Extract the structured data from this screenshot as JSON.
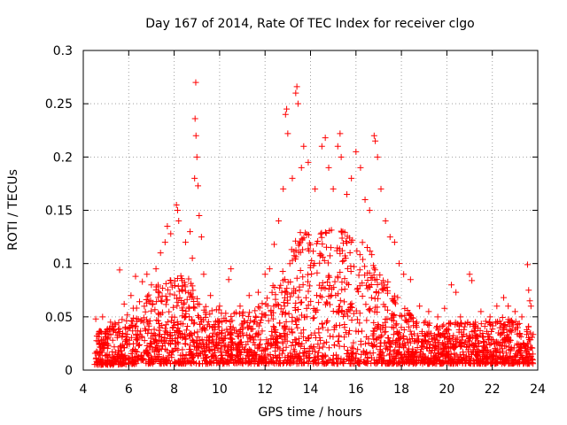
{
  "colors": {
    "series": "#ff0000",
    "grid": "#a0a0a0",
    "axis": "#000000",
    "background": "#ffffff"
  },
  "chart_data": {
    "type": "scatter",
    "title": "Day 167 of 2014, Rate Of TEC Index for receiver clgo",
    "xlabel": "GPS time / hours",
    "ylabel": "ROTI / TECUs",
    "xlim": [
      4,
      24
    ],
    "ylim": [
      0,
      0.3
    ],
    "x_ticks": [
      4,
      6,
      8,
      10,
      12,
      14,
      16,
      18,
      20,
      22,
      24
    ],
    "x_tick_labels": [
      "4",
      "6",
      "8",
      "10",
      "12",
      "14",
      "16",
      "18",
      "20",
      "22",
      "24"
    ],
    "y_ticks": [
      0,
      0.05,
      0.1,
      0.15,
      0.2,
      0.25,
      0.3
    ],
    "y_tick_labels": [
      "0",
      "0.05",
      "0.1",
      "0.15",
      "0.2",
      "0.25",
      "0.3"
    ],
    "grid": true,
    "marker": "+",
    "series": [
      {
        "name": "ROTI",
        "points": [
          [
            4.55,
            0.048
          ],
          [
            4.6,
            0.032
          ],
          [
            4.7,
            0.036
          ],
          [
            4.85,
            0.05
          ],
          [
            5.2,
            0.045
          ],
          [
            5.6,
            0.094
          ],
          [
            5.8,
            0.062
          ],
          [
            6.1,
            0.07
          ],
          [
            6.3,
            0.088
          ],
          [
            6.6,
            0.083
          ],
          [
            6.8,
            0.09
          ],
          [
            7.0,
            0.08
          ],
          [
            7.2,
            0.095
          ],
          [
            7.4,
            0.11
          ],
          [
            7.6,
            0.12
          ],
          [
            7.7,
            0.135
          ],
          [
            7.85,
            0.128
          ],
          [
            8.1,
            0.155
          ],
          [
            8.15,
            0.15
          ],
          [
            8.2,
            0.14
          ],
          [
            8.5,
            0.12
          ],
          [
            8.7,
            0.13
          ],
          [
            8.8,
            0.105
          ],
          [
            8.9,
            0.18
          ],
          [
            8.92,
            0.236
          ],
          [
            8.95,
            0.27
          ],
          [
            8.96,
            0.22
          ],
          [
            9.0,
            0.2
          ],
          [
            9.05,
            0.173
          ],
          [
            9.1,
            0.145
          ],
          [
            9.2,
            0.125
          ],
          [
            9.3,
            0.09
          ],
          [
            9.6,
            0.07
          ],
          [
            10.0,
            0.06
          ],
          [
            10.4,
            0.085
          ],
          [
            10.5,
            0.095
          ],
          [
            10.9,
            0.06
          ],
          [
            11.3,
            0.07
          ],
          [
            11.7,
            0.073
          ],
          [
            12.0,
            0.09
          ],
          [
            12.2,
            0.095
          ],
          [
            12.4,
            0.118
          ],
          [
            12.6,
            0.14
          ],
          [
            12.8,
            0.17
          ],
          [
            12.9,
            0.24
          ],
          [
            12.95,
            0.245
          ],
          [
            13.0,
            0.222
          ],
          [
            13.2,
            0.18
          ],
          [
            13.35,
            0.26
          ],
          [
            13.4,
            0.266
          ],
          [
            13.45,
            0.25
          ],
          [
            13.6,
            0.19
          ],
          [
            13.7,
            0.21
          ],
          [
            13.9,
            0.195
          ],
          [
            14.2,
            0.17
          ],
          [
            14.5,
            0.21
          ],
          [
            14.65,
            0.218
          ],
          [
            14.8,
            0.19
          ],
          [
            15.0,
            0.17
          ],
          [
            15.2,
            0.21
          ],
          [
            15.3,
            0.222
          ],
          [
            15.35,
            0.2
          ],
          [
            15.6,
            0.165
          ],
          [
            15.8,
            0.18
          ],
          [
            16.0,
            0.205
          ],
          [
            16.2,
            0.19
          ],
          [
            16.4,
            0.16
          ],
          [
            16.6,
            0.15
          ],
          [
            16.8,
            0.22
          ],
          [
            16.85,
            0.215
          ],
          [
            16.95,
            0.2
          ],
          [
            17.1,
            0.17
          ],
          [
            17.3,
            0.14
          ],
          [
            17.5,
            0.125
          ],
          [
            17.7,
            0.12
          ],
          [
            17.9,
            0.1
          ],
          [
            18.1,
            0.09
          ],
          [
            18.4,
            0.085
          ],
          [
            18.8,
            0.06
          ],
          [
            19.2,
            0.055
          ],
          [
            19.6,
            0.05
          ],
          [
            19.9,
            0.058
          ],
          [
            20.2,
            0.08
          ],
          [
            20.4,
            0.073
          ],
          [
            20.6,
            0.05
          ],
          [
            21.0,
            0.09
          ],
          [
            21.1,
            0.084
          ],
          [
            21.5,
            0.055
          ],
          [
            21.9,
            0.05
          ],
          [
            22.2,
            0.06
          ],
          [
            22.5,
            0.068
          ],
          [
            22.7,
            0.06
          ],
          [
            23.0,
            0.055
          ],
          [
            23.3,
            0.05
          ],
          [
            23.55,
            0.099
          ],
          [
            23.6,
            0.075
          ],
          [
            23.65,
            0.065
          ],
          [
            23.7,
            0.06
          ]
        ]
      }
    ],
    "background_band": {
      "description": "dense scatter of ROTI points across time",
      "x_range": [
        4.5,
        23.8
      ],
      "envelope_x": [
        4.5,
        5.5,
        6.5,
        7.5,
        8.5,
        9.5,
        10.5,
        11.5,
        12.5,
        13.5,
        14.5,
        15.5,
        16.5,
        17.5,
        18.5,
        19.5,
        20.5,
        21.5,
        22.5,
        23.8
      ],
      "envelope_low": [
        0.005,
        0.005,
        0.006,
        0.006,
        0.006,
        0.006,
        0.006,
        0.006,
        0.006,
        0.006,
        0.006,
        0.006,
        0.006,
        0.006,
        0.006,
        0.006,
        0.006,
        0.006,
        0.006,
        0.006
      ],
      "envelope_high": [
        0.035,
        0.045,
        0.065,
        0.085,
        0.09,
        0.06,
        0.055,
        0.055,
        0.085,
        0.13,
        0.135,
        0.13,
        0.12,
        0.08,
        0.05,
        0.045,
        0.045,
        0.045,
        0.05,
        0.04
      ]
    }
  }
}
